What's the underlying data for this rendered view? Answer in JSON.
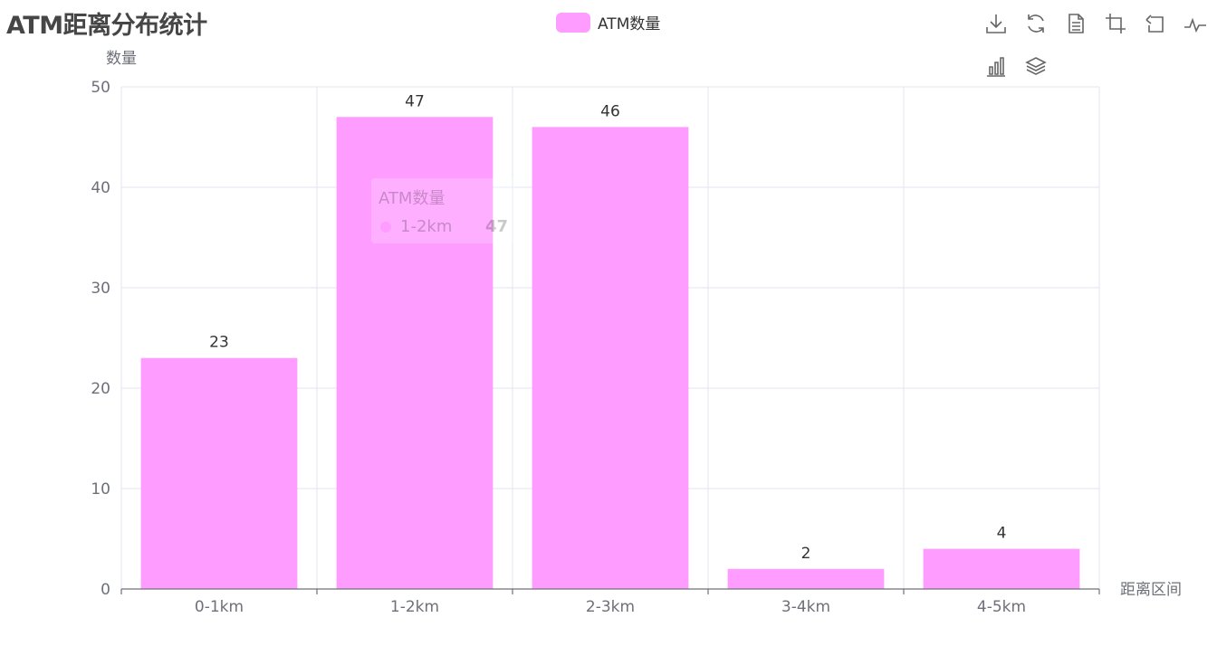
{
  "title": "ATM距离分布统计",
  "legend": {
    "label": "ATM数量",
    "color": "#ff9cff"
  },
  "colors": {
    "bar": "#ff9cff",
    "grid": "#e0e6f1",
    "axis": "#6e7079",
    "label": "#333333"
  },
  "toolbox": {
    "icons": [
      "download-icon",
      "refresh-icon",
      "data-view-icon",
      "crop-icon",
      "undo-icon",
      "line-chart-icon",
      "bar-chart-icon",
      "stack-icon"
    ]
  },
  "tooltip": {
    "title": "ATM数量",
    "name": "1-2km",
    "value": "47"
  },
  "chart_data": {
    "type": "bar",
    "title": "ATM距离分布统计",
    "xlabel": "距离区间",
    "ylabel": "数量",
    "categories": [
      "0-1km",
      "1-2km",
      "2-3km",
      "3-4km",
      "4-5km"
    ],
    "series": [
      {
        "name": "ATM数量",
        "values": [
          23,
          47,
          46,
          2,
          4
        ]
      }
    ],
    "ylim": [
      0,
      50
    ],
    "yticks": [
      0,
      10,
      20,
      30,
      40,
      50
    ],
    "grid": true,
    "legend": "top-center",
    "show_data_labels": true
  }
}
